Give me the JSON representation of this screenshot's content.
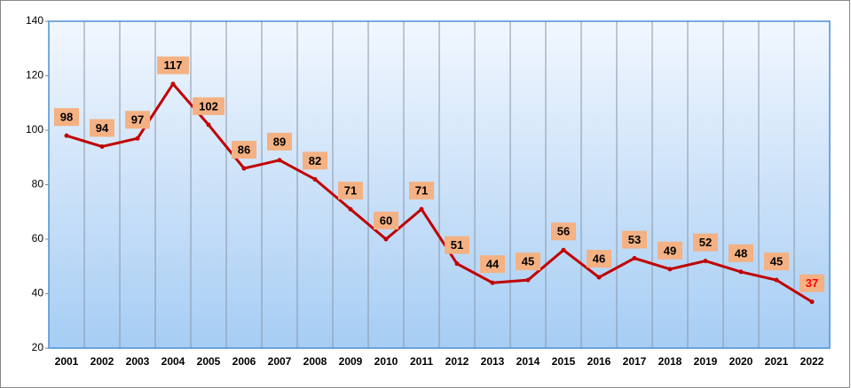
{
  "chart_data": {
    "type": "line",
    "categories": [
      "2001",
      "2002",
      "2003",
      "2004",
      "2005",
      "2006",
      "2007",
      "2008",
      "2009",
      "2010",
      "2011",
      "2012",
      "2013",
      "2014",
      "2015",
      "2016",
      "2017",
      "2018",
      "2019",
      "2020",
      "2021",
      "2022"
    ],
    "values": [
      98,
      94,
      97,
      117,
      102,
      86,
      89,
      82,
      71,
      60,
      71,
      51,
      44,
      45,
      56,
      46,
      53,
      49,
      52,
      48,
      45,
      37
    ],
    "color": "#c00000",
    "label_box_color": "#f4b183",
    "last_label_color": "#ff0000",
    "ylim": [
      20,
      140
    ],
    "yticks": [
      20,
      40,
      60,
      80,
      100,
      120,
      140
    ],
    "grid": true
  }
}
